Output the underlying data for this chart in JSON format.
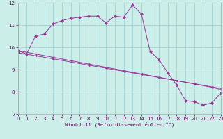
{
  "xlabel": "Windchill (Refroidissement éolien,°C)",
  "bg_color": "#cceee8",
  "line_color": "#993399",
  "grid_color": "#99cccc",
  "xlim": [
    0,
    23
  ],
  "ylim": [
    7,
    12
  ],
  "xticks": [
    0,
    1,
    2,
    3,
    4,
    5,
    6,
    7,
    8,
    9,
    10,
    11,
    12,
    13,
    14,
    15,
    16,
    17,
    18,
    19,
    20,
    21,
    22,
    23
  ],
  "yticks": [
    7,
    8,
    9,
    10,
    11,
    12
  ],
  "curve_x": [
    0,
    1,
    2,
    3,
    4,
    5,
    6,
    7,
    8,
    9,
    10,
    11,
    12,
    13,
    14,
    15,
    16,
    17,
    18,
    19,
    20,
    21,
    22,
    23
  ],
  "curve_y": [
    9.85,
    9.7,
    10.5,
    10.6,
    11.05,
    11.2,
    11.3,
    11.35,
    11.4,
    11.4,
    11.1,
    11.4,
    11.35,
    11.9,
    11.5,
    9.8,
    9.45,
    8.85,
    8.3,
    7.6,
    7.55,
    7.4,
    7.5,
    7.95
  ],
  "line1_x": [
    0,
    2,
    4,
    6,
    8,
    10,
    12,
    14,
    16,
    18,
    20,
    22,
    23
  ],
  "line1_y": [
    9.85,
    9.7,
    9.55,
    9.4,
    9.25,
    9.1,
    8.95,
    8.8,
    8.65,
    8.5,
    8.35,
    8.2,
    8.1
  ],
  "line2_x": [
    0,
    2,
    4,
    6,
    8,
    10,
    12,
    14,
    16,
    18,
    20,
    22,
    23
  ],
  "line2_y": [
    9.75,
    9.62,
    9.48,
    9.34,
    9.2,
    9.06,
    8.92,
    8.78,
    8.64,
    8.5,
    8.36,
    8.22,
    8.15
  ]
}
